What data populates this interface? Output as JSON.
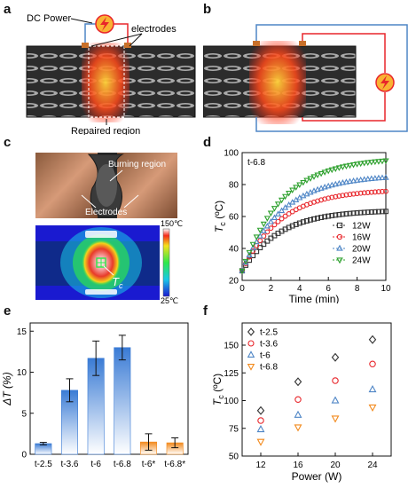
{
  "panel_labels": {
    "a": "a",
    "b": "b",
    "c": "c",
    "d": "d",
    "e": "e",
    "f": "f"
  },
  "panel_a": {
    "dc_power": "DC Power",
    "electrodes": "electrodes",
    "repaired_region": "Repaired region"
  },
  "panel_c": {
    "burning_region": "Burning region",
    "electrodes": "Electrodes",
    "scale_max": "150℃",
    "scale_min": "25℃",
    "tc_label": "T",
    "tc_sub": "c"
  },
  "colors": {
    "red": "#e8262b",
    "blue": "#4f86c6",
    "green": "#2ca02c",
    "orange": "#f28a1d",
    "dark": "#333333",
    "bar_blue": "#3a7bd5"
  },
  "chart_data": [
    {
      "id": "d",
      "type": "scatter",
      "annotation": "t-6.8",
      "xlabel": "Time (min)",
      "ylabel": "T",
      "ylabel_sub": "c",
      "ylabel_unit": " (ºC)",
      "xlim": [
        0,
        10
      ],
      "ylim": [
        20,
        100
      ],
      "xticks": [
        0,
        2,
        4,
        6,
        8,
        10
      ],
      "yticks": [
        20,
        40,
        60,
        80,
        100
      ],
      "legend_position": "lower-right",
      "series": [
        {
          "name": "12W",
          "marker": "square",
          "color": "#333333",
          "plateau": 64,
          "tau": 2.6
        },
        {
          "name": "16W",
          "marker": "circle",
          "color": "#e8262b",
          "plateau": 77,
          "tau": 2.7
        },
        {
          "name": "20W",
          "marker": "triangle-up",
          "color": "#4f86c6",
          "plateau": 86,
          "tau": 2.8
        },
        {
          "name": "24W",
          "marker": "triangle-down",
          "color": "#2ca02c",
          "plateau": 97,
          "tau": 2.8
        }
      ],
      "start": 26
    },
    {
      "id": "e",
      "type": "bar",
      "ylabel": "ΔT (%)",
      "ylim": [
        0,
        16
      ],
      "yticks": [
        0,
        5,
        10,
        15
      ],
      "categories": [
        "t-2.5",
        "t-3.6",
        "t-6",
        "t-6.8",
        "t-6*",
        "t-6.8*"
      ],
      "values": [
        1.3,
        7.8,
        11.7,
        13.0,
        1.5,
        1.4
      ],
      "errors": [
        0.15,
        1.4,
        2.1,
        1.5,
        1.0,
        0.6
      ],
      "series_colors": [
        "#3a7bd5",
        "#3a7bd5",
        "#3a7bd5",
        "#3a7bd5",
        "#f28a1d",
        "#f28a1d"
      ]
    },
    {
      "id": "f",
      "type": "scatter",
      "xlabel": "Power (W)",
      "ylabel": "T",
      "ylabel_sub": "c",
      "ylabel_unit": " (ºC)",
      "xlim": [
        10,
        26
      ],
      "ylim": [
        50,
        170
      ],
      "xticks": [
        12,
        16,
        20,
        24
      ],
      "yticks": [
        50,
        75,
        100,
        125,
        150
      ],
      "legend_position": "top-left",
      "x": [
        12,
        16,
        20,
        24
      ],
      "series": [
        {
          "name": "t-2.5",
          "marker": "diamond",
          "color": "#333333",
          "values": [
            91,
            117,
            139,
            155
          ]
        },
        {
          "name": "t-3.6",
          "marker": "circle",
          "color": "#e8262b",
          "values": [
            82,
            101,
            118,
            133
          ]
        },
        {
          "name": "t-6",
          "marker": "triangle-up",
          "color": "#4f86c6",
          "values": [
            74,
            87,
            100,
            110
          ]
        },
        {
          "name": "t-6.8",
          "marker": "triangle-down",
          "color": "#f28a1d",
          "values": [
            63,
            76,
            84,
            94
          ]
        }
      ]
    }
  ]
}
